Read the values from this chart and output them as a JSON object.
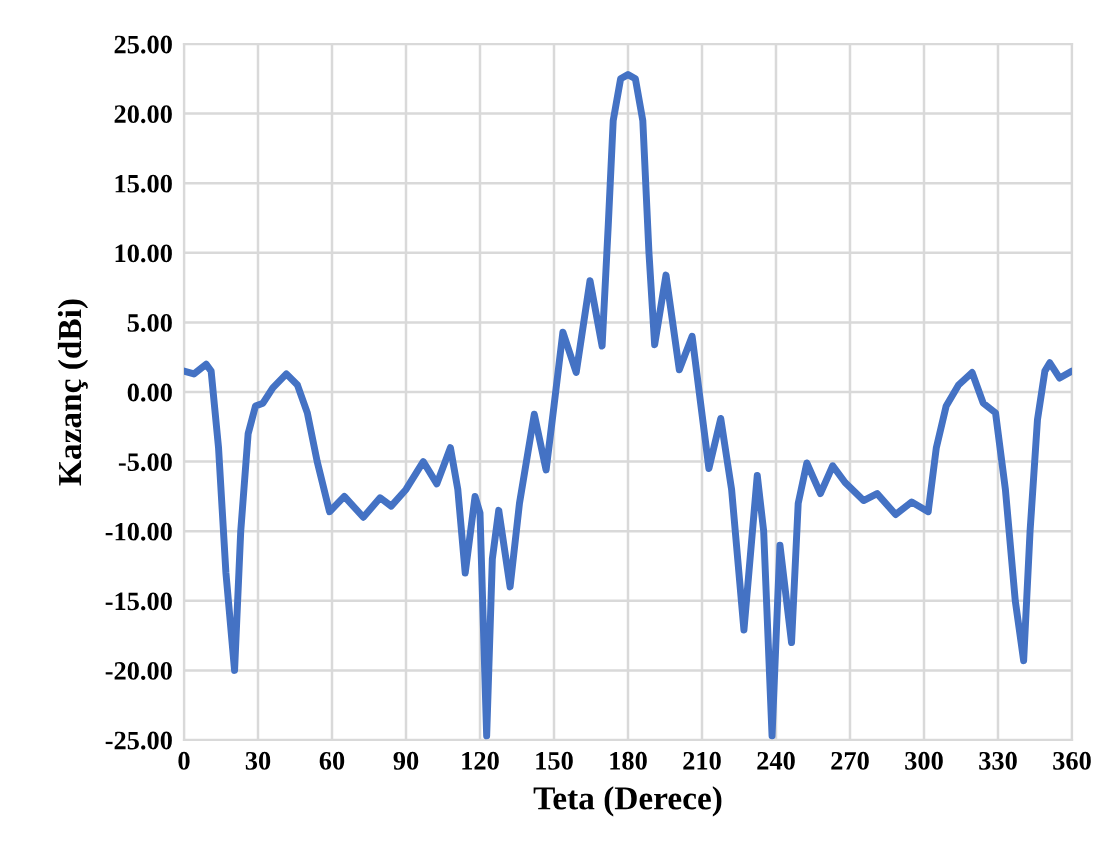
{
  "chart_data": {
    "type": "line",
    "xlabel": "Teta (Derece)",
    "ylabel": "Kazanç (dBi)",
    "xlim": [
      0,
      360
    ],
    "xticks": [
      0,
      30,
      60,
      90,
      120,
      150,
      180,
      210,
      240,
      270,
      300,
      330,
      360
    ],
    "ylim": [
      -25,
      25
    ],
    "yticks": [
      {
        "value": -25,
        "label": "-25.00"
      },
      {
        "value": -20,
        "label": "-20.00"
      },
      {
        "value": -15,
        "label": "-15.00"
      },
      {
        "value": -10,
        "label": "-10.00"
      },
      {
        "value": -5,
        "label": "-5.00"
      },
      {
        "value": 0,
        "label": "0.00"
      },
      {
        "value": 5,
        "label": "5.00"
      },
      {
        "value": 10,
        "label": "10.00"
      },
      {
        "value": 15,
        "label": "15.00"
      },
      {
        "value": 20,
        "label": "20.00"
      },
      {
        "value": 25,
        "label": "25.00"
      }
    ],
    "grid": true,
    "legend": false,
    "marker": "none",
    "line_style": "solid",
    "series": [
      {
        "color": "#4472c4",
        "x": [
          0,
          4,
          9,
          11,
          14,
          17,
          20.5,
          23,
          26,
          29,
          32,
          36,
          41.5,
          46,
          50,
          54,
          59,
          65,
          72.7,
          79.5,
          84,
          90,
          97,
          102.5,
          108,
          111,
          114,
          118,
          120,
          122.7,
          125,
          127.6,
          132.2,
          136,
          142,
          146.8,
          150,
          153.6,
          159,
          164.6,
          169.5,
          172,
          174,
          177,
          180,
          183,
          186,
          188.5,
          190.8,
          195.4,
          200.8,
          206,
          212.8,
          217.6,
          222,
          227,
          232.4,
          235,
          238.4,
          241.6,
          246.3,
          249,
          252.5,
          258,
          263,
          268,
          275.5,
          281,
          288.5,
          295,
          301.7,
          305,
          309,
          314,
          319.5,
          324,
          329,
          333,
          337,
          340.4,
          343,
          346,
          349,
          351,
          355,
          360
        ],
        "values": [
          1.5,
          1.3,
          2.0,
          1.5,
          -4,
          -13,
          -20,
          -10,
          -3,
          -1,
          -0.8,
          0.3,
          1.3,
          0.5,
          -1.5,
          -5,
          -8.6,
          -7.5,
          -9,
          -7.6,
          -8.2,
          -7,
          -5,
          -6.6,
          -4,
          -7,
          -13,
          -7.5,
          -8.7,
          -24.7,
          -12,
          -8.5,
          -14,
          -8,
          -1.6,
          -5.6,
          -1,
          4.3,
          1.4,
          8,
          3.3,
          12,
          19.5,
          22.5,
          22.8,
          22.5,
          19.5,
          10,
          3.4,
          8.4,
          1.6,
          4,
          -5.5,
          -1.9,
          -7,
          -17.1,
          -6,
          -10,
          -24.7,
          -11,
          -18,
          -8,
          -5.1,
          -7.3,
          -5.3,
          -6.5,
          -7.8,
          -7.3,
          -8.8,
          -7.9,
          -8.6,
          -4,
          -1,
          0.5,
          1.4,
          -0.8,
          -1.5,
          -7,
          -15,
          -19.3,
          -10,
          -2,
          1.5,
          2.1,
          1.0,
          1.5
        ]
      }
    ]
  }
}
